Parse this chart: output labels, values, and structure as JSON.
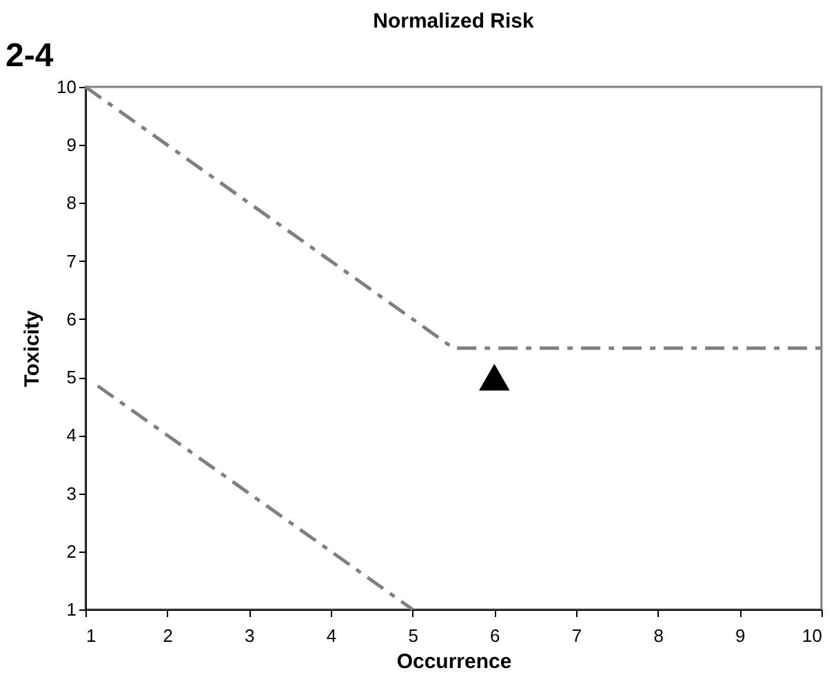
{
  "chart_data": {
    "type": "line",
    "title": "Normalized Risk",
    "xlabel": "Occurrence",
    "ylabel": "Toxicity",
    "annotations": [
      "2-4"
    ],
    "xlim": [
      1,
      10
    ],
    "ylim": [
      1,
      10
    ],
    "xticks": [
      1,
      2,
      3,
      4,
      5,
      6,
      7,
      8,
      9,
      10
    ],
    "yticks": [
      1,
      2,
      3,
      4,
      5,
      6,
      7,
      8,
      9,
      10
    ],
    "grid": false,
    "series": [
      {
        "color": "#808080",
        "line_style": "dashed",
        "x": [
          1,
          5.5,
          10
        ],
        "values": [
          10,
          5.5,
          5.5
        ]
      },
      {
        "color": "#808080",
        "line_style": "dashed",
        "x": [
          1.15,
          5
        ],
        "values": [
          4.85,
          1
        ]
      },
      {
        "type": "scatter",
        "color": "#000000",
        "marker": "triangle",
        "x": [
          6
        ],
        "values": [
          5
        ]
      }
    ]
  }
}
